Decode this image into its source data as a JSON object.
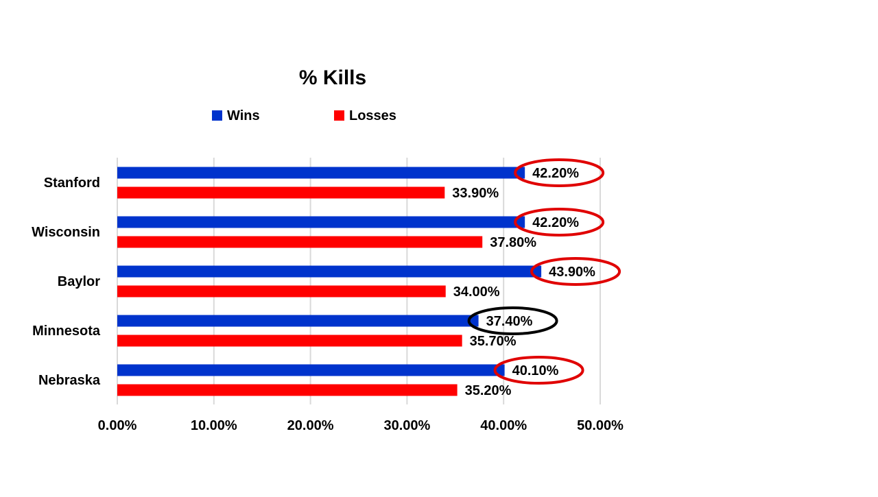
{
  "chart_data": {
    "type": "bar",
    "orientation": "horizontal",
    "title": "% Kills",
    "xlabel": "",
    "ylabel": "",
    "categories": [
      "Stanford",
      "Wisconsin",
      "Baylor",
      "Minnesota",
      "Nebraska"
    ],
    "series": [
      {
        "name": "Wins",
        "color": "#0033cc",
        "values": [
          42.2,
          42.2,
          43.9,
          37.4,
          40.1
        ],
        "labels": [
          "42.20%",
          "42.20%",
          "43.90%",
          "37.40%",
          "40.10%"
        ]
      },
      {
        "name": "Losses",
        "color": "#ff0000",
        "values": [
          33.9,
          37.8,
          34.0,
          35.7,
          35.2
        ],
        "labels": [
          "33.90%",
          "37.80%",
          "34.00%",
          "35.70%",
          "35.20%"
        ]
      }
    ],
    "xlim": [
      0,
      50
    ],
    "xticks": [
      0,
      10,
      20,
      30,
      40,
      50
    ],
    "xtick_labels": [
      "0.00%",
      "10.00%",
      "20.00%",
      "30.00%",
      "40.00%",
      "50.00%"
    ],
    "grid": "vertical",
    "legend_position": "top",
    "annotations": [
      {
        "category": "Stanford",
        "series": "Wins",
        "shape": "ellipse",
        "color": "#e00000"
      },
      {
        "category": "Wisconsin",
        "series": "Wins",
        "shape": "ellipse",
        "color": "#e00000"
      },
      {
        "category": "Baylor",
        "series": "Wins",
        "shape": "ellipse",
        "color": "#e00000"
      },
      {
        "category": "Minnesota",
        "series": "Wins",
        "shape": "ellipse",
        "color": "#000000"
      },
      {
        "category": "Nebraska",
        "series": "Wins",
        "shape": "ellipse",
        "color": "#e00000"
      }
    ]
  }
}
